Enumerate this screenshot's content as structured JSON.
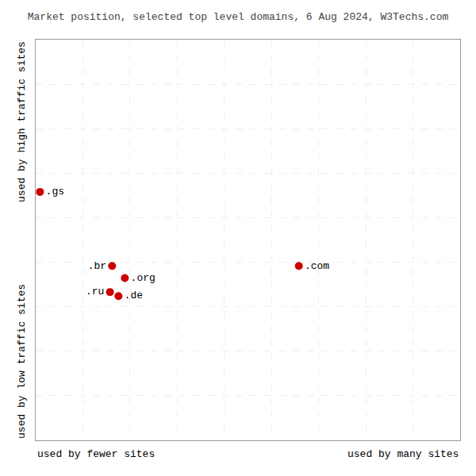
{
  "chart_data": {
    "type": "scatter",
    "title": "Market position, selected top level domains, 6 Aug 2024, W3Techs.com",
    "labels": [
      ".gs",
      ".br",
      ".org",
      ".ru",
      ".de",
      ".com"
    ],
    "x": [
      0.01,
      0.18,
      0.21,
      0.175,
      0.195,
      0.62
    ],
    "values": [
      0.62,
      0.435,
      0.405,
      0.37,
      0.36,
      0.435
    ],
    "color": "#cc0000",
    "xlabel_left": "used by fewer sites",
    "xlabel_right": "used by many sites",
    "ylabel_top": "used by high traffic sites",
    "ylabel_bottom": "used by low traffic sites",
    "xlim": [
      0,
      1
    ],
    "ylim": [
      0,
      1
    ],
    "xticks": [
      0,
      0.1111111111111111,
      0.2222222222222222,
      0.3333333333333333,
      0.4444444444444444,
      0.5555555555555556,
      0.6666666666666666,
      0.7777777777777777,
      0.8888888888888888,
      1
    ],
    "yticks": [
      0,
      0.1111111111111111,
      0.2222222222222222,
      0.3333333333333333,
      0.4444444444444444,
      0.5555555555555556,
      0.6666666666666666,
      0.7777777777777777,
      0.8888888888888888,
      1
    ],
    "grid": true,
    "tick_labels": false
  }
}
